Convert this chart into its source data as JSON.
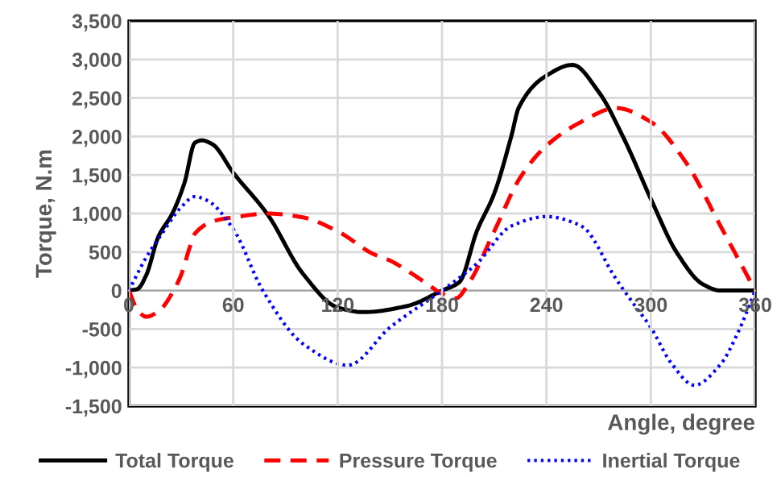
{
  "chart_data": {
    "type": "line",
    "xlabel": "Angle, degree",
    "ylabel": "Torque, N.m",
    "xlim": [
      0,
      360
    ],
    "xticks": [
      0,
      60,
      120,
      180,
      240,
      300,
      360
    ],
    "ylim": [
      -1500,
      3500
    ],
    "yticks": [
      {
        "value": -1500,
        "label": "-1,500"
      },
      {
        "value": -1000,
        "label": "-1,000"
      },
      {
        "value": -500,
        "label": "-500"
      },
      0,
      500,
      {
        "value": 1000,
        "label": "1,000"
      },
      {
        "value": 1500,
        "label": "1,500"
      },
      {
        "value": 2000,
        "label": "2,000"
      },
      {
        "value": 2500,
        "label": "2,500"
      },
      {
        "value": 3000,
        "label": "3,000"
      },
      {
        "value": 3500,
        "label": "3,500"
      }
    ],
    "grid": true,
    "legend": "bottom",
    "series": [
      {
        "name": "Total Torque",
        "color": "#000000",
        "line_style": "solid",
        "x": [
          0,
          5,
          10,
          17,
          25,
          32,
          38,
          42,
          48,
          60,
          80,
          100,
          120,
          135,
          160,
          180,
          190,
          200,
          210,
          220,
          224,
          240,
          255,
          270,
          285,
          300,
          315,
          330,
          340,
          360
        ],
        "values": [
          0,
          20,
          200,
          700,
          1000,
          1400,
          1920,
          1950,
          1900,
          1530,
          980,
          220,
          -220,
          -280,
          -200,
          0,
          110,
          770,
          1260,
          2020,
          2370,
          2790,
          2930,
          2580,
          1950,
          1190,
          490,
          80,
          0,
          0
        ]
      },
      {
        "name": "Pressure Torque",
        "color": "#ff0000",
        "line_style": "dashed",
        "x": [
          0,
          5,
          10,
          18,
          25,
          30,
          35,
          38,
          50,
          60,
          80,
          100,
          120,
          140,
          150,
          170,
          180,
          188,
          195,
          210,
          225,
          240,
          260,
          280,
          300,
          320,
          340,
          360
        ],
        "values": [
          0,
          -250,
          -340,
          -250,
          -30,
          200,
          560,
          740,
          910,
          950,
          1000,
          950,
          770,
          480,
          390,
          110,
          -40,
          -100,
          80,
          770,
          1470,
          1880,
          2190,
          2370,
          2190,
          1670,
          840,
          0
        ]
      },
      {
        "name": "Inertial Torque",
        "color": "#0000ff",
        "line_style": "dotted",
        "x": [
          0,
          10,
          20,
          30,
          38,
          45,
          60,
          77,
          100,
          126,
          150,
          180,
          200,
          220,
          240,
          260,
          280,
          290,
          300,
          312,
          325,
          340,
          350,
          360
        ],
        "values": [
          0,
          430,
          770,
          1080,
          1220,
          1170,
          800,
          0,
          -690,
          -970,
          -480,
          0,
          350,
          840,
          960,
          840,
          150,
          -170,
          -480,
          -950,
          -1230,
          -960,
          -550,
          0
        ]
      }
    ]
  }
}
